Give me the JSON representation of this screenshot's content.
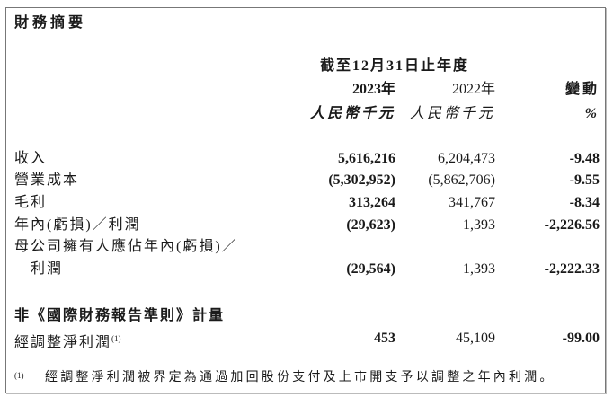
{
  "title": "財務摘要",
  "header": {
    "period": "截至12月31日止年度",
    "year_current": "2023年",
    "year_prior": "2022年",
    "change": "變動",
    "unit_current": "人民幣千元",
    "unit_prior": "人民幣千元",
    "unit_change": "%"
  },
  "rows": [
    {
      "label": "收入",
      "current": "5,616,216",
      "prior": "6,204,473",
      "change": "-9.48"
    },
    {
      "label": "營業成本",
      "current": "(5,302,952)",
      "prior": "(5,862,706)",
      "change": "-9.55"
    },
    {
      "label": "毛利",
      "current": "313,264",
      "prior": "341,767",
      "change": "-8.34"
    },
    {
      "label": "年內(虧損)／利潤",
      "current": "(29,623)",
      "prior": "1,393",
      "change": "-2,226.56"
    },
    {
      "label": "母公司擁有人應佔年內(虧損)／",
      "label_cont": "利潤",
      "current": "(29,564)",
      "prior": "1,393",
      "change": "-2,222.33"
    }
  ],
  "non_ifrs": {
    "heading": "非《國際財務報告準則》計量",
    "label": "經調整淨利潤",
    "note_ref": "(1)",
    "current": "453",
    "prior": "45,109",
    "change": "-99.00"
  },
  "footnote": {
    "marker": "(1)",
    "text": "經調整淨利潤被界定為通過加回股份支付及上市開支予以調整之年內利潤。"
  }
}
